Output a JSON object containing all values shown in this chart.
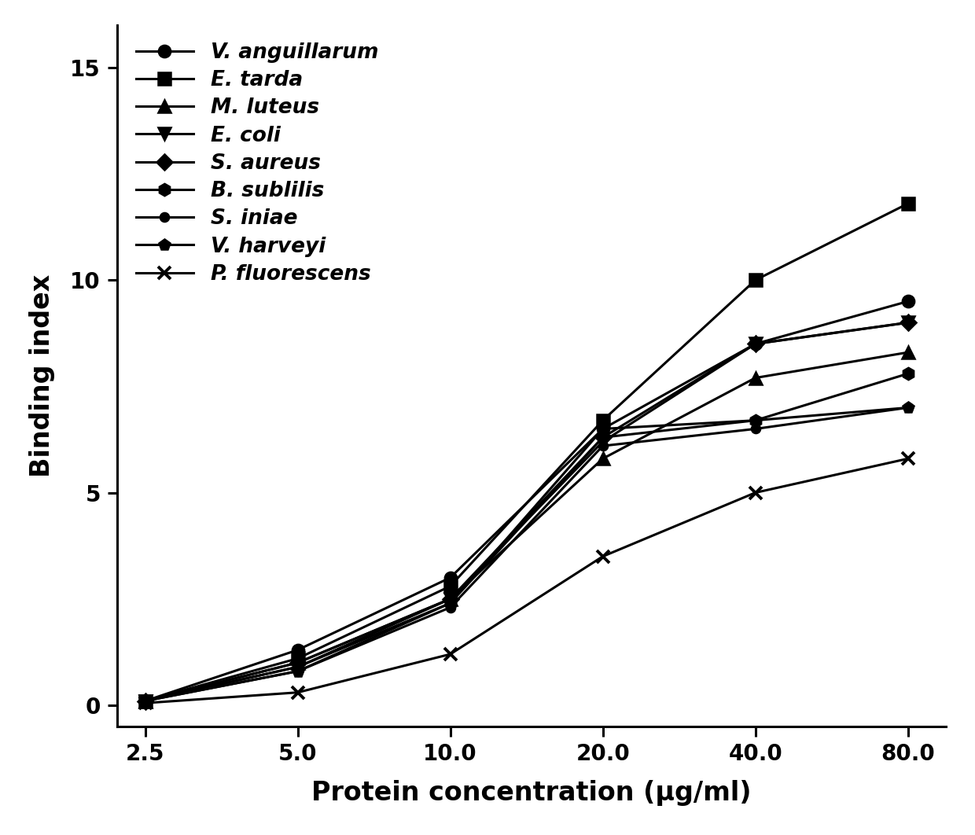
{
  "x": [
    2.5,
    5.0,
    10.0,
    20.0,
    40.0,
    80.0
  ],
  "series": [
    {
      "label": "V. anguillarum",
      "marker": "o",
      "markersize": 11,
      "values": [
        0.1,
        1.3,
        3.0,
        6.5,
        8.5,
        9.5
      ]
    },
    {
      "label": "E. tarda",
      "marker": "s",
      "markersize": 11,
      "values": [
        0.1,
        1.1,
        2.8,
        6.7,
        10.0,
        11.8
      ]
    },
    {
      "label": "M. luteus",
      "marker": "^",
      "markersize": 11,
      "values": [
        0.1,
        1.0,
        2.5,
        5.8,
        7.7,
        8.3
      ]
    },
    {
      "label": "E. coli",
      "marker": "v",
      "markersize": 11,
      "values": [
        0.1,
        0.9,
        2.5,
        6.2,
        8.5,
        9.0
      ]
    },
    {
      "label": "S. aureus",
      "marker": "D",
      "markersize": 10,
      "values": [
        0.1,
        1.0,
        2.5,
        6.3,
        8.5,
        9.0
      ]
    },
    {
      "label": "B. sublilis",
      "marker": "h",
      "markersize": 11,
      "values": [
        0.1,
        0.9,
        2.4,
        6.5,
        6.7,
        7.8
      ]
    },
    {
      "label": "S. iniae",
      "marker": "o",
      "markersize": 8,
      "values": [
        0.1,
        0.8,
        2.3,
        6.1,
        6.5,
        7.0
      ]
    },
    {
      "label": "V. harveyi",
      "marker": "p",
      "markersize": 10,
      "values": [
        0.1,
        0.8,
        2.4,
        6.3,
        6.7,
        7.0
      ]
    },
    {
      "label": "P. fluorescens",
      "marker": "x",
      "markersize": 12,
      "values": [
        0.05,
        0.3,
        1.2,
        3.5,
        5.0,
        5.8
      ]
    }
  ],
  "xlabel": "Protein concentration (μg/ml)",
  "ylabel": "Binding index",
  "ylim": [
    -0.5,
    16
  ],
  "yticks": [
    0,
    5,
    10,
    15
  ],
  "line_color": "#000000",
  "line_width": 2.2,
  "marker_color": "#000000",
  "background_color": "#ffffff",
  "legend_fontsize": 19,
  "axis_label_fontsize": 24,
  "tick_fontsize": 20
}
